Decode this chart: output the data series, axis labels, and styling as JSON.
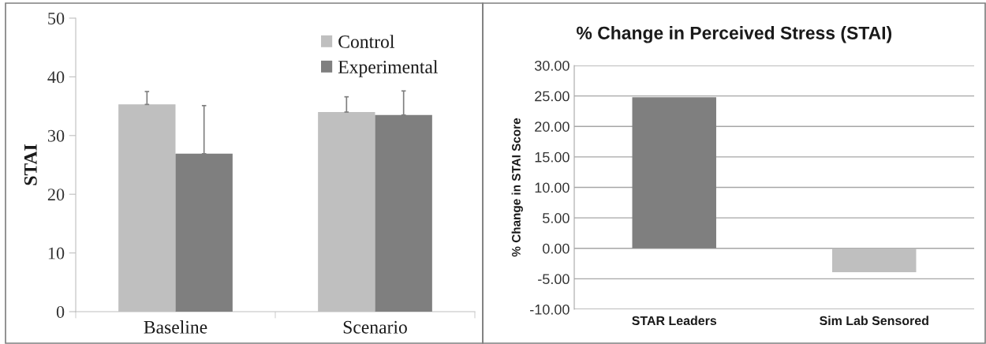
{
  "chart_data": [
    {
      "type": "bar",
      "ylabel": "STAI",
      "categories": [
        "Baseline",
        "Scenario"
      ],
      "series": [
        {
          "name": "Control",
          "color": "#bfbfbf",
          "values": [
            35.3,
            34.0
          ],
          "errors": [
            [
              35.3,
              37.5
            ],
            [
              34.0,
              36.6
            ]
          ]
        },
        {
          "name": "Experimental",
          "color": "#7f7f7f",
          "values": [
            26.9,
            33.5
          ],
          "errors": [
            [
              26.9,
              35.1
            ],
            [
              33.5,
              37.6
            ]
          ]
        }
      ],
      "ylim": [
        0,
        50
      ],
      "yticks": [
        0,
        10,
        20,
        30,
        40,
        50
      ],
      "legend": "top right"
    },
    {
      "type": "bar",
      "title": "% Change in Perceived Stress (STAI)",
      "ylabel": "% Change in STAI Score",
      "categories": [
        "STAR Leaders",
        "Sim Lab Sensored"
      ],
      "values": [
        24.8,
        -3.9
      ],
      "colors": [
        "#7f7f7f",
        "#bfbfbf"
      ],
      "ylim": [
        -10,
        30
      ],
      "yticks": [
        {
          "value": -10,
          "label": "-10.00"
        },
        {
          "value": -5,
          "label": "-5.00"
        },
        {
          "value": 0,
          "label": "0.00"
        },
        {
          "value": 5,
          "label": "5.00"
        },
        {
          "value": 10,
          "label": "10.00"
        },
        {
          "value": 15,
          "label": "15.00"
        },
        {
          "value": 20,
          "label": "20.00"
        },
        {
          "value": 25,
          "label": "25.00"
        },
        {
          "value": 30,
          "label": "30.00"
        }
      ],
      "grid": "y"
    }
  ]
}
